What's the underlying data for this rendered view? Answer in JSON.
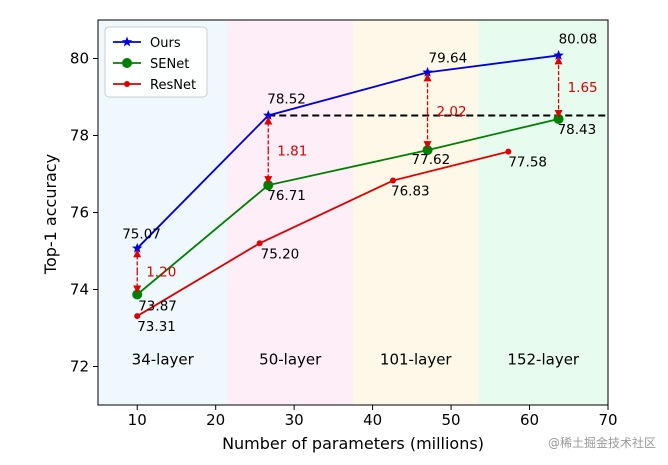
{
  "chart_data": {
    "type": "line",
    "xlabel": "Number of parameters (millions)",
    "ylabel": "Top-1 accuracy",
    "xlim": [
      5,
      70
    ],
    "ylim": [
      71,
      81
    ],
    "x_ticks": [
      "10",
      "20",
      "30",
      "40",
      "50",
      "60",
      "70"
    ],
    "y_ticks": [
      "72",
      "74",
      "76",
      "78",
      "80"
    ],
    "grid": false,
    "legend_position": "top-left",
    "bands": [
      {
        "label": "34-layer",
        "x_range": [
          5,
          21.5
        ],
        "color": "#eef8fd"
      },
      {
        "label": "50-layer",
        "x_range": [
          21.5,
          37.5
        ],
        "color": "#fdeef8"
      },
      {
        "label": "101-layer",
        "x_range": [
          37.5,
          53.5
        ],
        "color": "#fdf8e8"
      },
      {
        "label": "152-layer",
        "x_range": [
          53.5,
          70
        ],
        "color": "#e8fbef"
      }
    ],
    "series": [
      {
        "name": "Ours",
        "color": "#0000e0",
        "marker": "star",
        "x": [
          10,
          26.7,
          47,
          63.7
        ],
        "y": [
          75.07,
          78.52,
          79.64,
          80.08
        ],
        "labels": [
          "75.07",
          "78.52",
          "79.64",
          "80.08"
        ]
      },
      {
        "name": "SENet",
        "color": "#008000",
        "marker": "circle",
        "x": [
          10,
          26.7,
          47,
          63.7
        ],
        "y": [
          73.87,
          76.71,
          77.62,
          78.43
        ],
        "labels": [
          "73.87",
          "76.71",
          "77.62",
          "78.43"
        ]
      },
      {
        "name": "ResNet",
        "color": "#e00000",
        "marker": "dot",
        "x": [
          10,
          25.6,
          42.6,
          57.3
        ],
        "y": [
          73.31,
          75.2,
          76.83,
          77.58
        ],
        "labels": [
          "73.31",
          "75.20",
          "76.83",
          "77.58"
        ]
      }
    ],
    "reference_line": {
      "y": 78.52,
      "x_range": [
        26.7,
        70
      ],
      "style": "dashed",
      "color": "#000000"
    },
    "gap_annotations": [
      {
        "x": 10,
        "y_from": 73.87,
        "y_to": 75.07,
        "label": "1.20"
      },
      {
        "x": 26.7,
        "y_from": 76.71,
        "y_to": 78.52,
        "label": "1.81"
      },
      {
        "x": 47,
        "y_from": 77.62,
        "y_to": 79.64,
        "label": "2.02"
      },
      {
        "x": 63.7,
        "y_from": 78.43,
        "y_to": 80.08,
        "label": "1.65"
      }
    ]
  },
  "watermark": "@稀土掘金技术社区"
}
